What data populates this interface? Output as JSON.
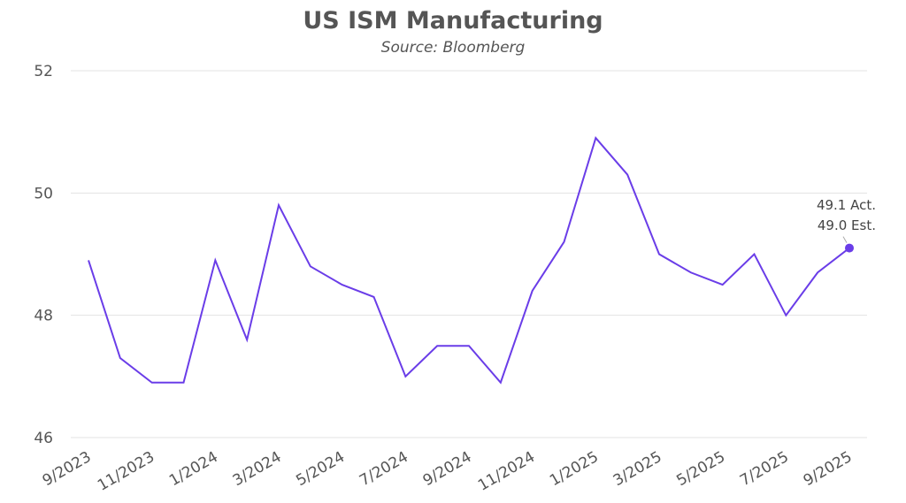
{
  "chart_data": {
    "type": "line",
    "title": "US ISM Manufacturing",
    "subtitle": "Source: Bloomberg",
    "xlabel": "",
    "ylabel": "",
    "ylim": [
      46,
      52
    ],
    "yticks": [
      "46",
      "48",
      "50",
      "52"
    ],
    "grid": true,
    "x": [
      "9/2023",
      "10/2023",
      "11/2023",
      "12/2023",
      "1/2024",
      "2/2024",
      "3/2024",
      "4/2024",
      "5/2024",
      "6/2024",
      "7/2024",
      "8/2024",
      "9/2024",
      "10/2024",
      "11/2024",
      "12/2024",
      "1/2025",
      "2/2025",
      "3/2025",
      "4/2025",
      "5/2025",
      "6/2025",
      "7/2025",
      "8/2025",
      "9/2025"
    ],
    "xtick_labels": [
      "9/2023",
      "11/2023",
      "1/2024",
      "3/2024",
      "5/2024",
      "7/2024",
      "9/2024",
      "11/2024",
      "1/2025",
      "3/2025",
      "5/2025",
      "7/2025",
      "9/2025"
    ],
    "series": [
      {
        "name": "US ISM Manufacturing",
        "color": "#6a3de8",
        "values": [
          48.9,
          47.3,
          46.9,
          46.9,
          48.9,
          47.6,
          49.8,
          48.8,
          48.5,
          48.3,
          47.0,
          47.5,
          47.5,
          46.9,
          48.4,
          49.2,
          50.9,
          50.3,
          49.0,
          48.7,
          48.5,
          49.0,
          48.0,
          48.7,
          49.1
        ]
      }
    ],
    "annotations": [
      "49.1 Act.",
      "49.0 Est."
    ]
  }
}
